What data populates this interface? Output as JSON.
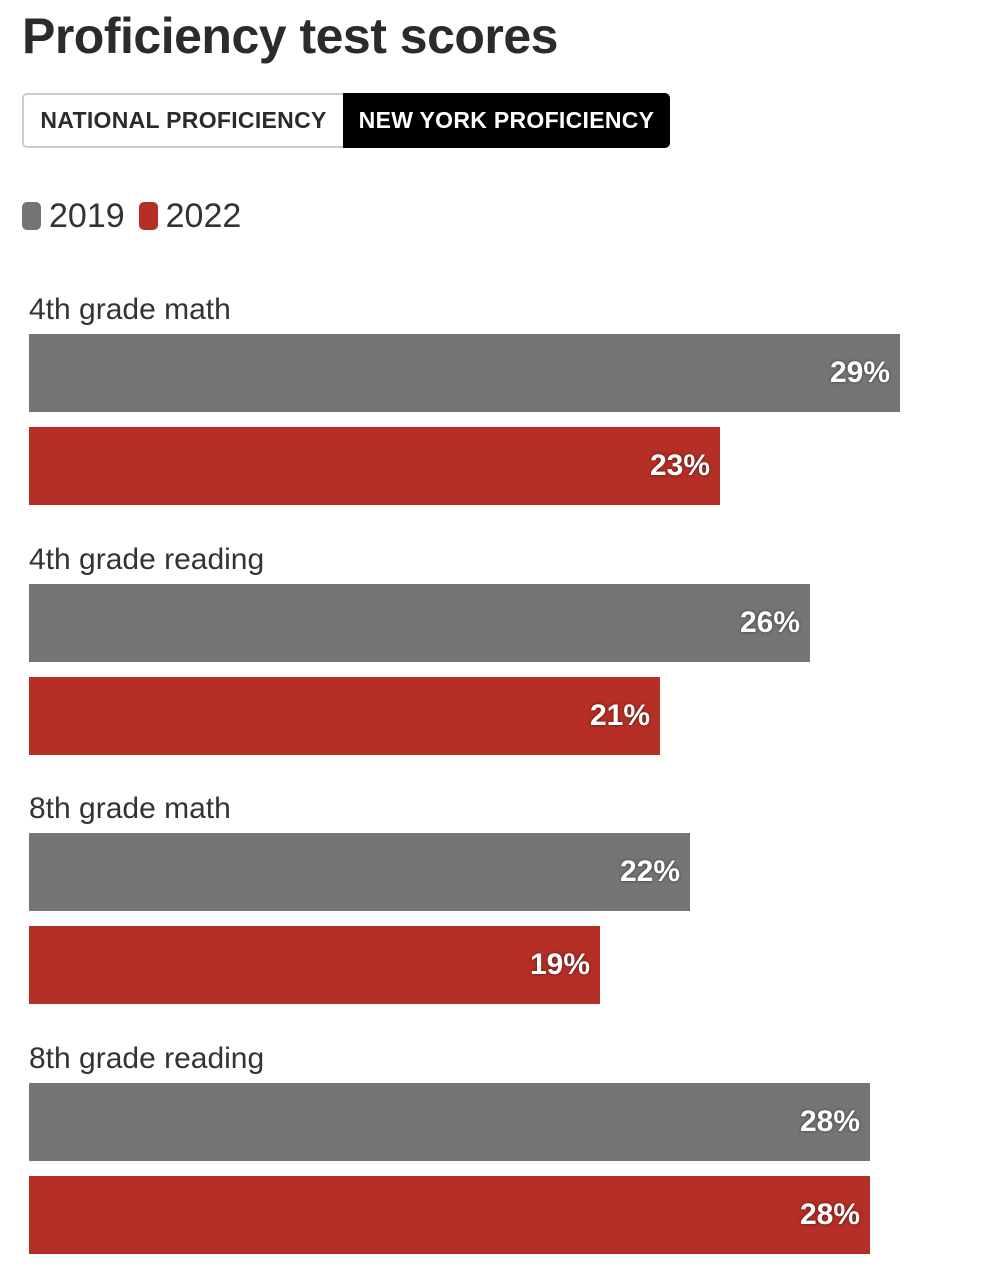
{
  "title": "Proficiency test scores",
  "tabs": [
    {
      "label": "NATIONAL PROFICIENCY",
      "active": false
    },
    {
      "label": "NEW YORK PROFICIENCY",
      "active": true
    }
  ],
  "colors": {
    "2019": "#757575",
    "2022": "#b52f26"
  },
  "chart_data": {
    "type": "bar",
    "orientation": "horizontal",
    "categories": [
      "4th grade math",
      "4th grade reading",
      "8th grade math",
      "8th grade reading"
    ],
    "series": [
      {
        "name": "2019",
        "values": [
          29,
          26,
          22,
          28
        ],
        "labels": [
          "29%",
          "26%",
          "22%",
          "28%"
        ]
      },
      {
        "name": "2022",
        "values": [
          23,
          21,
          19,
          28
        ],
        "labels": [
          "23%",
          "21%",
          "19%",
          "28%"
        ]
      }
    ],
    "xlim": [
      0,
      30
    ],
    "grid": false,
    "legend": "top-left"
  }
}
